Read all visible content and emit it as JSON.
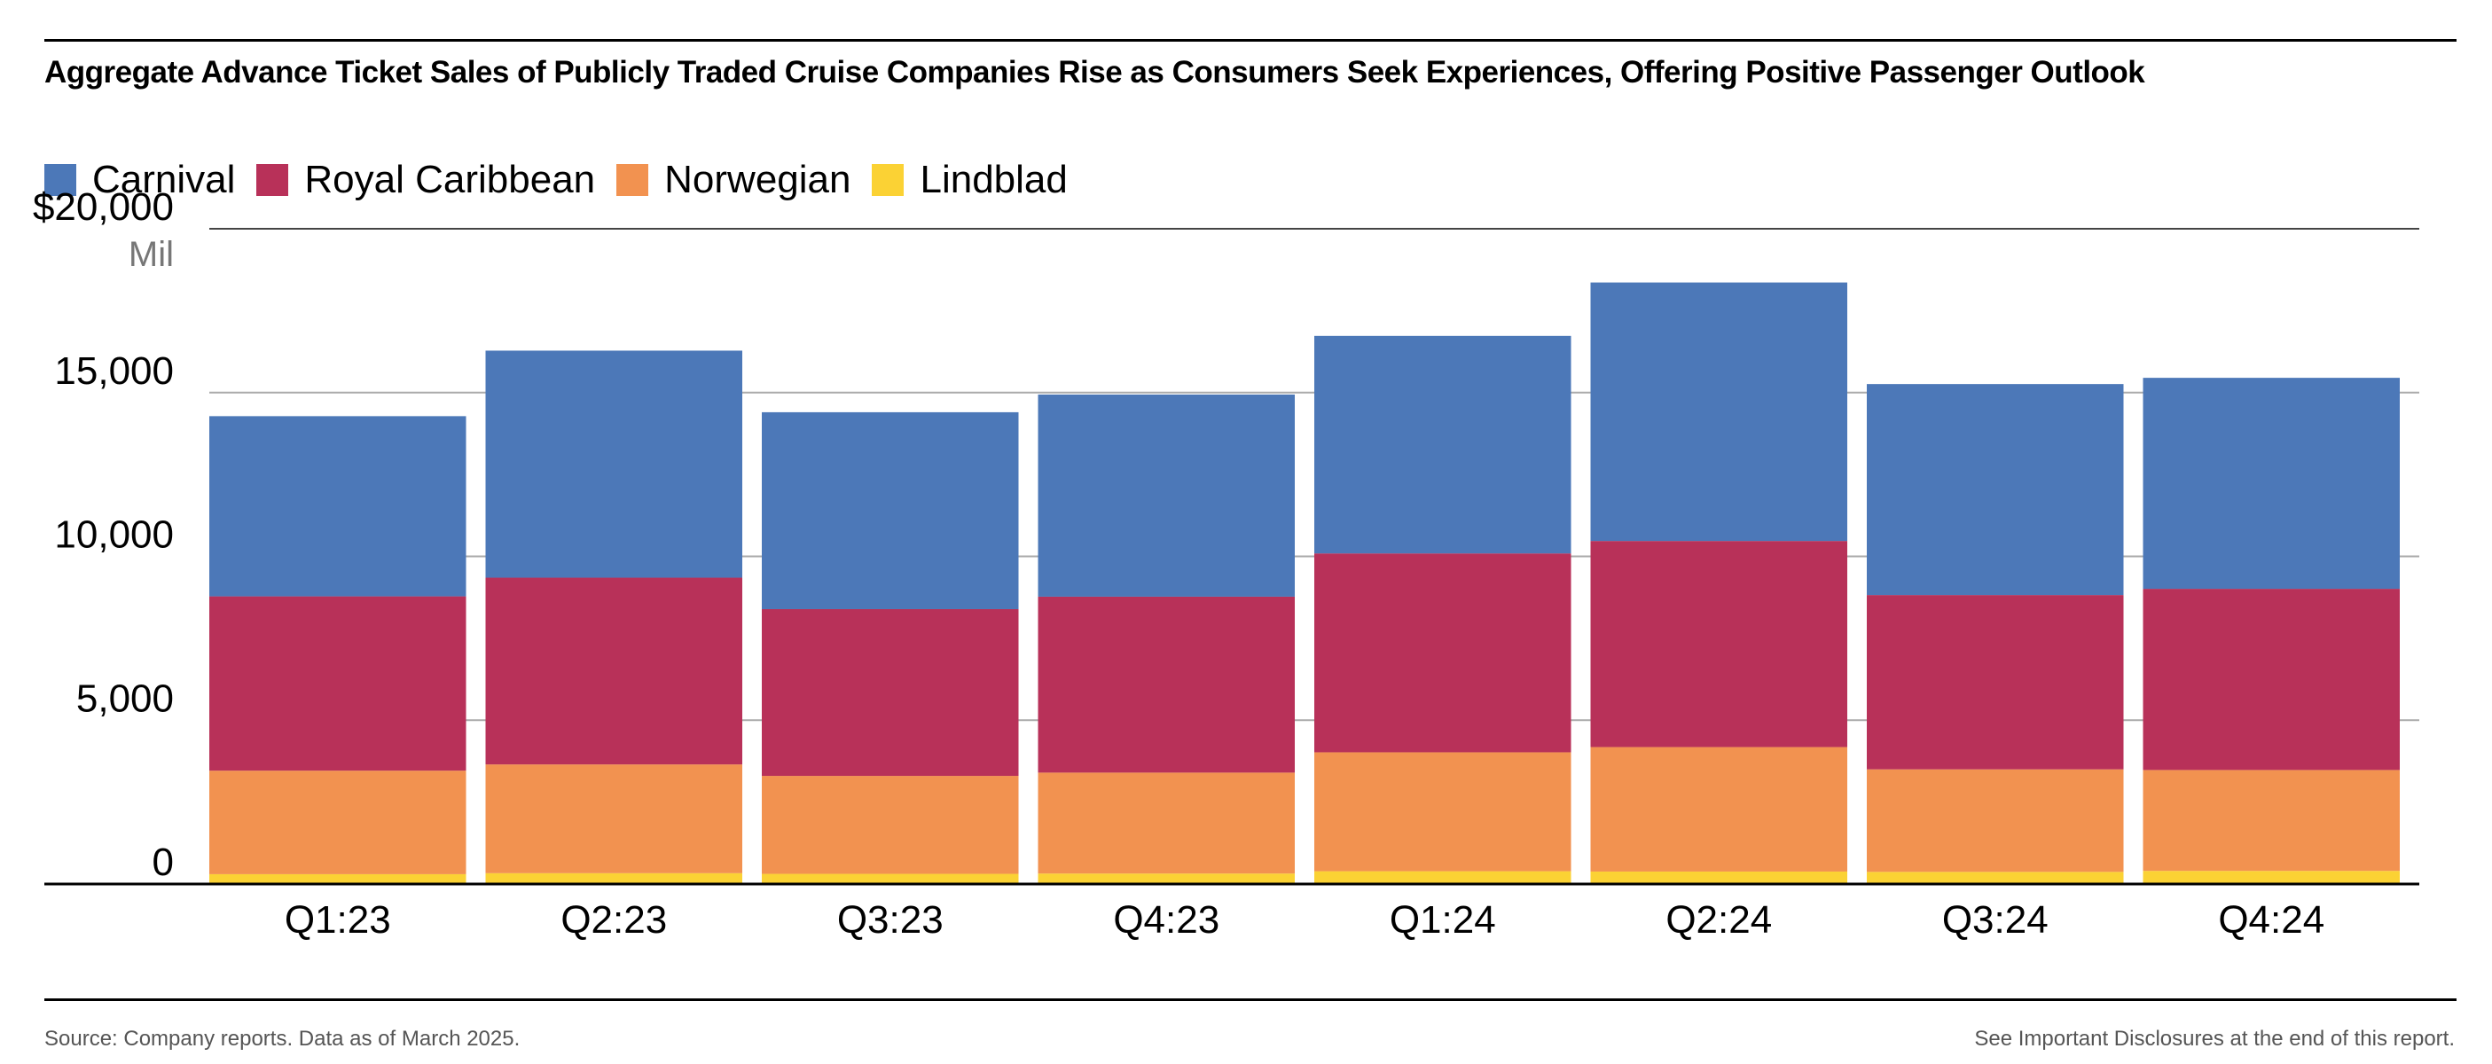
{
  "title": "Aggregate Advance Ticket Sales of Publicly Traded Cruise Companies Rise as Consumers Seek Experiences, Offering Positive Passenger Outlook",
  "footer": {
    "source": "Source: Company reports. Data as of March 2025.",
    "disclosure": "See Important Disclosures at the end of this report."
  },
  "chart_data": {
    "type": "bar",
    "stacked": true,
    "categories": [
      "Q1:23",
      "Q2:23",
      "Q3:23",
      "Q4:23",
      "Q1:24",
      "Q2:24",
      "Q3:24",
      "Q4:24"
    ],
    "series": [
      {
        "name": "Lindblad",
        "color": "#FBD234",
        "values": [
          300,
          330,
          310,
          320,
          390,
          380,
          370,
          400
        ]
      },
      {
        "name": "Norwegian",
        "color": "#F29250",
        "values": [
          3160,
          3320,
          2990,
          3080,
          3630,
          3800,
          3130,
          3080
        ]
      },
      {
        "name": "Royal Caribbean",
        "color": "#B83159",
        "values": [
          5320,
          5700,
          5090,
          5370,
          6070,
          6290,
          5320,
          5530
        ]
      },
      {
        "name": "Carnival",
        "color": "#4C78B8",
        "values": [
          5500,
          6930,
          6010,
          6170,
          6640,
          7890,
          6440,
          6440
        ]
      }
    ],
    "legend_order": [
      "Carnival",
      "Royal Caribbean",
      "Norwegian",
      "Lindblad"
    ],
    "ylim": [
      0,
      20000
    ],
    "yticks": [
      {
        "value": 0,
        "label": "0"
      },
      {
        "value": 5000,
        "label": "5,000"
      },
      {
        "value": 10000,
        "label": "10,000"
      },
      {
        "value": 15000,
        "label": "15,000"
      },
      {
        "value": 20000,
        "label": "$20,000"
      }
    ],
    "yunit": "Mil",
    "grid": true,
    "legend_position": "top-left"
  }
}
